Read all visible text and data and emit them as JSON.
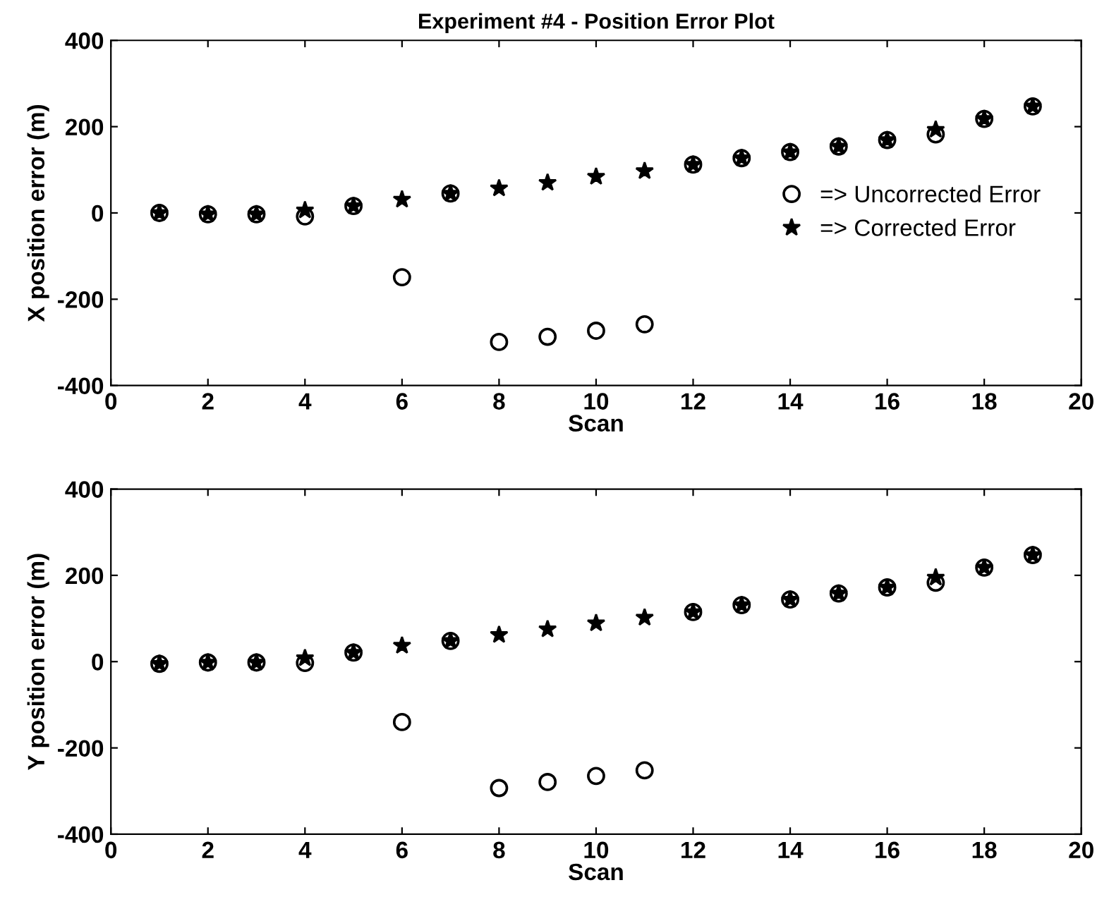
{
  "chart_data": [
    {
      "type": "scatter",
      "title": "Experiment #4 - Position Error Plot",
      "xlabel": "Scan",
      "ylabel": "X position error (m)",
      "x": [
        1,
        2,
        3,
        4,
        5,
        6,
        7,
        8,
        9,
        10,
        11,
        12,
        13,
        14,
        15,
        16,
        17,
        18,
        19
      ],
      "series": [
        {
          "name": "=> Uncorrected Error",
          "color": "#000000",
          "marker": "circle",
          "values": [
            0,
            -3,
            -3,
            -8,
            16,
            -149,
            45,
            -299,
            -287,
            -273,
            -258,
            112,
            127,
            141,
            154,
            169,
            182,
            218,
            247
          ]
        },
        {
          "name": "=> Corrected Error",
          "color": "#000000",
          "marker": "star",
          "values": [
            0,
            -3,
            -3,
            6,
            16,
            31,
            45,
            57,
            70,
            84,
            97,
            112,
            127,
            141,
            154,
            169,
            193,
            218,
            247
          ]
        }
      ],
      "xlim": [
        0,
        20
      ],
      "xticks": [
        0,
        2,
        4,
        6,
        8,
        10,
        12,
        14,
        16,
        18,
        20
      ],
      "ylim": [
        -400,
        400
      ],
      "yticks": [
        -400,
        -200,
        0,
        200,
        400
      ],
      "grid": false,
      "legend": "right"
    },
    {
      "type": "scatter",
      "xlabel": "Scan",
      "ylabel": "Y position error (m)",
      "x": [
        1,
        2,
        3,
        4,
        5,
        6,
        7,
        8,
        9,
        10,
        11,
        12,
        13,
        14,
        15,
        16,
        17,
        18,
        19
      ],
      "series": [
        {
          "color": "#000000",
          "marker": "circle",
          "values": [
            -5,
            -2,
            -2,
            -3,
            21,
            -140,
            48,
            -293,
            -279,
            -265,
            -252,
            115,
            131,
            144,
            158,
            172,
            183,
            218,
            247
          ]
        },
        {
          "color": "#000000",
          "marker": "star",
          "values": [
            -5,
            -2,
            -2,
            8,
            21,
            37,
            48,
            62,
            75,
            89,
            102,
            115,
            131,
            144,
            158,
            172,
            195,
            218,
            247
          ]
        }
      ],
      "xlim": [
        0,
        20
      ],
      "xticks": [
        0,
        2,
        4,
        6,
        8,
        10,
        12,
        14,
        16,
        18,
        20
      ],
      "ylim": [
        -400,
        400
      ],
      "yticks": [
        -400,
        -200,
        0,
        200,
        400
      ],
      "grid": false,
      "legend": false
    }
  ]
}
